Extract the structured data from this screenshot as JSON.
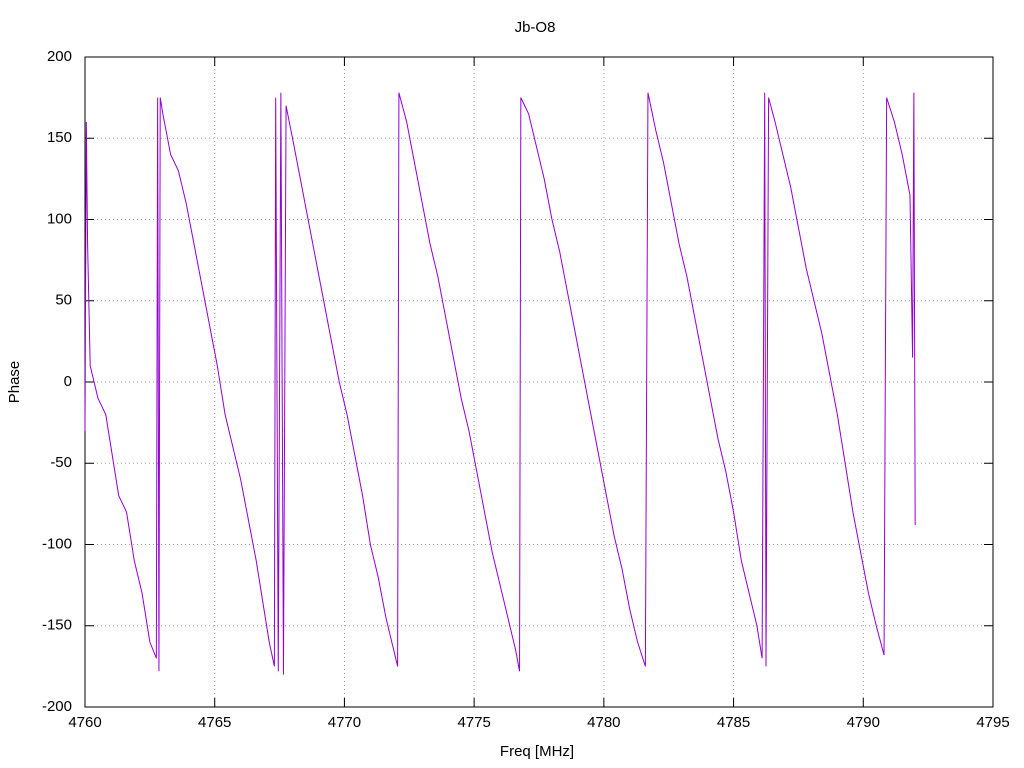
{
  "chart_data": {
    "type": "line",
    "title": "Jb-O8",
    "x_label": "Freq [MHz]",
    "y_label": "Phase",
    "color": "#9400d3",
    "grid": true,
    "xlim": [
      4760,
      4795
    ],
    "xticks": [
      4760,
      4765,
      4770,
      4775,
      4780,
      4785,
      4790,
      4795
    ],
    "ylim": [
      -200,
      200
    ],
    "yticks": [
      -200,
      -150,
      -100,
      -50,
      0,
      50,
      100,
      150,
      200
    ],
    "x": [
      4760,
      4760.05,
      4760.1,
      4760.2,
      4760.5,
      4760.8,
      4761,
      4761.3,
      4761.6,
      4761.9,
      4762.2,
      4762.5,
      4762.75,
      4762.8,
      4762.85,
      4762.9,
      4763,
      4763.3,
      4763.6,
      4763.9,
      4764.2,
      4764.5,
      4764.8,
      4765.1,
      4765.4,
      4765.7,
      4766,
      4766.3,
      4766.6,
      4766.9,
      4767.1,
      4767.3,
      4767.35,
      4767.45,
      4767.55,
      4767.65,
      4767.75,
      4768,
      4768.3,
      4768.6,
      4768.9,
      4769.2,
      4769.5,
      4769.8,
      4770.1,
      4770.4,
      4770.7,
      4771,
      4771.3,
      4771.6,
      4771.9,
      4772.05,
      4772.1,
      4772.4,
      4772.7,
      4773,
      4773.3,
      4773.6,
      4773.9,
      4774.2,
      4774.5,
      4774.8,
      4775.1,
      4775.4,
      4775.7,
      4776,
      4776.3,
      4776.6,
      4776.75,
      4776.8,
      4777.1,
      4777.4,
      4777.7,
      4778,
      4778.3,
      4778.6,
      4778.9,
      4779.2,
      4779.5,
      4779.8,
      4780.1,
      4780.4,
      4780.7,
      4781,
      4781.3,
      4781.6,
      4781.7,
      4782,
      4782.3,
      4782.6,
      4782.9,
      4783.2,
      4783.5,
      4783.8,
      4784.1,
      4784.4,
      4784.7,
      4785,
      4785.3,
      4785.6,
      4785.9,
      4786.1,
      4786.2,
      4786.25,
      4786.35,
      4786.6,
      4786.9,
      4787.2,
      4787.5,
      4787.8,
      4788.1,
      4788.4,
      4788.7,
      4789,
      4789.3,
      4789.6,
      4789.9,
      4790.2,
      4790.5,
      4790.8,
      4790.9,
      4791.2,
      4791.5,
      4791.8,
      4791.9,
      4791.95,
      4792
    ],
    "values": [
      -30,
      160,
      85,
      10,
      -10,
      -20,
      -40,
      -70,
      -80,
      -110,
      -130,
      -160,
      -170,
      175,
      -178,
      175,
      165,
      140,
      130,
      110,
      85,
      60,
      35,
      10,
      -20,
      -40,
      -60,
      -85,
      -110,
      -140,
      -160,
      -175,
      175,
      -178,
      178,
      -180,
      170,
      150,
      125,
      100,
      75,
      50,
      25,
      0,
      -20,
      -45,
      -70,
      -100,
      -120,
      -145,
      -165,
      -175,
      178,
      160,
      135,
      110,
      85,
      65,
      40,
      15,
      -10,
      -30,
      -55,
      -80,
      -105,
      -125,
      -145,
      -165,
      -178,
      175,
      165,
      145,
      125,
      100,
      80,
      55,
      30,
      5,
      -20,
      -45,
      -70,
      -95,
      -115,
      -140,
      -160,
      -175,
      178,
      155,
      135,
      110,
      85,
      65,
      40,
      15,
      -10,
      -35,
      -55,
      -80,
      -110,
      -130,
      -150,
      -170,
      178,
      -175,
      175,
      160,
      140,
      120,
      95,
      70,
      50,
      30,
      5,
      -20,
      -50,
      -80,
      -105,
      -130,
      -150,
      -168,
      175,
      160,
      140,
      115,
      15,
      178,
      -88
    ]
  }
}
